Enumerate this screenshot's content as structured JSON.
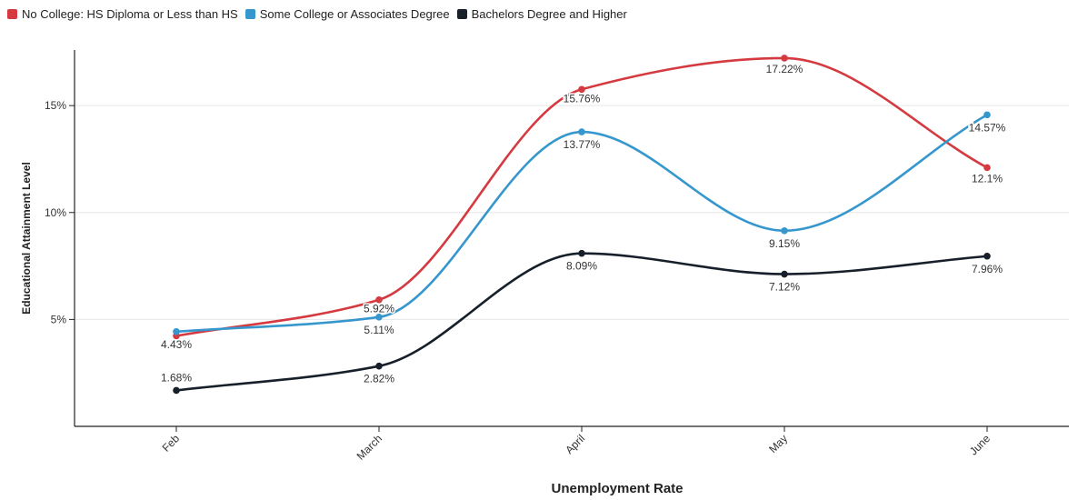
{
  "chart_data": {
    "type": "line",
    "categories": [
      "Feb",
      "March",
      "April",
      "May",
      "June"
    ],
    "series": [
      {
        "name": "No College: HS Diploma or Less than HS",
        "color": "#d43a3f",
        "values": [
          4.23,
          5.92,
          15.76,
          17.22,
          12.1
        ],
        "labels": [
          "",
          "5.92%",
          "15.76%",
          "17.22%",
          "12.1%"
        ]
      },
      {
        "name": "Some College or Associates Degree",
        "color": "#3597cd",
        "values": [
          4.43,
          5.11,
          13.77,
          9.15,
          14.57
        ],
        "labels": [
          "4.43%",
          "5.11%",
          "13.77%",
          "9.15%",
          "14.57%"
        ]
      },
      {
        "name": "Bachelors Degree and Higher",
        "color": "#17202a",
        "values": [
          1.68,
          2.82,
          8.09,
          7.12,
          7.96
        ],
        "labels": [
          "1.68%",
          "2.82%",
          "8.09%",
          "7.12%",
          "7.96%"
        ]
      }
    ],
    "xlabel": "Unemployment Rate",
    "ylabel": "Educational Attainment Level",
    "yticks": [
      5,
      10,
      15
    ],
    "ytick_labels": [
      "5%",
      "10%",
      "15%"
    ],
    "ylim": [
      0,
      17.6
    ],
    "grid": true,
    "legend_position": "top-left"
  }
}
